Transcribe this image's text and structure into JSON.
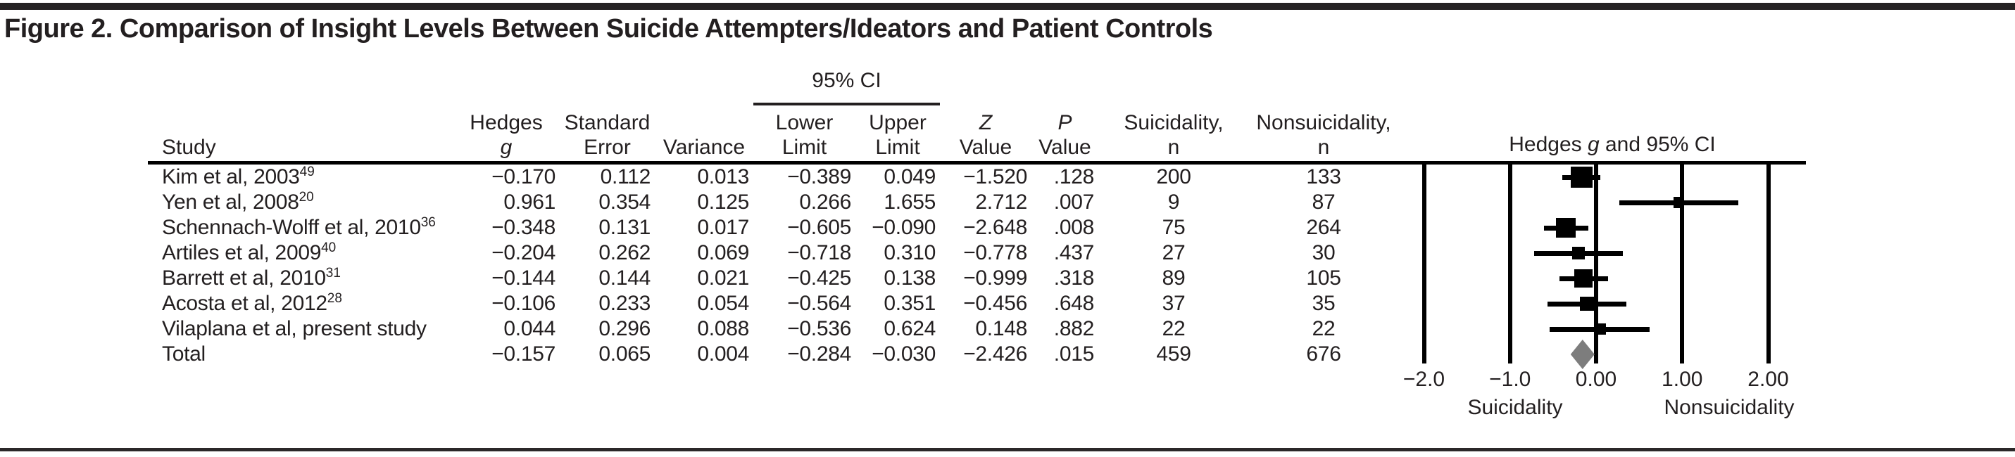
{
  "figure": {
    "title": "Figure 2. Comparison of Insight Levels Between Suicide Attempters/Ideators and Patient Controls"
  },
  "table": {
    "ci_spanner": "95% CI",
    "headers": [
      {
        "l1": "",
        "l2": "Study"
      },
      {
        "l1": "Hedges",
        "l2": "g"
      },
      {
        "l1": "Standard",
        "l2": "Error"
      },
      {
        "l1": "",
        "l2": "Variance"
      },
      {
        "l1": "Lower",
        "l2": "Limit"
      },
      {
        "l1": "Upper",
        "l2": "Limit"
      },
      {
        "l1": "Z",
        "l2": "Value"
      },
      {
        "l1": "P",
        "l2": "Value"
      },
      {
        "l1": "Suicidality,",
        "l2": "n"
      },
      {
        "l1": "Nonsuicidality,",
        "l2": "n"
      }
    ]
  },
  "chart_data": {
    "type": "forest_plot",
    "effect_measure": "Hedges g",
    "plot_title_parts": {
      "pre": "Hedges ",
      "g": "g",
      "post": " and 95% CI"
    },
    "rows": [
      {
        "study": "Kim et al, 2003",
        "ref": "49",
        "g": -0.17,
        "se": 0.112,
        "variance": 0.013,
        "lower": -0.389,
        "upper": 0.049,
        "z": -1.52,
        "p": ".128",
        "n_suicidality": 200,
        "n_nonsuicidality": 133,
        "total": false
      },
      {
        "study": "Yen et al, 2008",
        "ref": "20",
        "g": 0.961,
        "se": 0.354,
        "variance": 0.125,
        "lower": 0.266,
        "upper": 1.655,
        "z": 2.712,
        "p": ".007",
        "n_suicidality": 9,
        "n_nonsuicidality": 87,
        "total": false
      },
      {
        "study": "Schennach-Wolff et al, 2010",
        "ref": "36",
        "g": -0.348,
        "se": 0.131,
        "variance": 0.017,
        "lower": -0.605,
        "upper": -0.09,
        "z": -2.648,
        "p": ".008",
        "n_suicidality": 75,
        "n_nonsuicidality": 264,
        "total": false
      },
      {
        "study": "Artiles et al, 2009",
        "ref": "40",
        "g": -0.204,
        "se": 0.262,
        "variance": 0.069,
        "lower": -0.718,
        "upper": 0.31,
        "z": -0.778,
        "p": ".437",
        "n_suicidality": 27,
        "n_nonsuicidality": 30,
        "total": false
      },
      {
        "study": "Barrett et al, 2010",
        "ref": "31",
        "g": -0.144,
        "se": 0.144,
        "variance": 0.021,
        "lower": -0.425,
        "upper": 0.138,
        "z": -0.999,
        "p": ".318",
        "n_suicidality": 89,
        "n_nonsuicidality": 105,
        "total": false
      },
      {
        "study": "Acosta et al, 2012",
        "ref": "28",
        "g": -0.106,
        "se": 0.233,
        "variance": 0.054,
        "lower": -0.564,
        "upper": 0.351,
        "z": -0.456,
        "p": ".648",
        "n_suicidality": 37,
        "n_nonsuicidality": 35,
        "total": false
      },
      {
        "study": "Vilaplana et al, present study",
        "ref": "",
        "g": 0.044,
        "se": 0.296,
        "variance": 0.088,
        "lower": -0.536,
        "upper": 0.624,
        "z": 0.148,
        "p": ".882",
        "n_suicidality": 22,
        "n_nonsuicidality": 22,
        "total": false
      },
      {
        "study": "Total",
        "ref": "",
        "g": -0.157,
        "se": 0.065,
        "variance": 0.004,
        "lower": -0.284,
        "upper": -0.03,
        "z": -2.426,
        "p": ".015",
        "n_suicidality": 459,
        "n_nonsuicidality": 676,
        "total": true
      }
    ],
    "axis": {
      "min": -2,
      "max": 2,
      "ticks": [
        {
          "value": -2,
          "label": "−2.0"
        },
        {
          "value": -1,
          "label": "−1.0"
        },
        {
          "value": 0,
          "label": "0.00"
        },
        {
          "value": 1,
          "label": "1.00"
        },
        {
          "value": 2,
          "label": "2.00"
        }
      ],
      "left_region_label": "Suicidality",
      "right_region_label": "Nonsuicidality"
    },
    "colors": {
      "marker": "#000000",
      "pooled_diamond": "#7d7d7d",
      "text": "#231f20"
    }
  }
}
